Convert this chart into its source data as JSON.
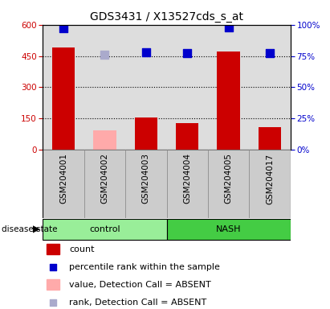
{
  "title": "GDS3431 / X13527cds_s_at",
  "samples": [
    "GSM204001",
    "GSM204002",
    "GSM204003",
    "GSM204004",
    "GSM204005",
    "GSM204017"
  ],
  "groups": [
    "control",
    "control",
    "control",
    "NASH",
    "NASH",
    "NASH"
  ],
  "count_values": [
    490,
    null,
    155,
    130,
    470,
    110
  ],
  "count_absent_values": [
    null,
    95,
    null,
    null,
    null,
    null
  ],
  "percentile_values": [
    97,
    null,
    78,
    77,
    98,
    77
  ],
  "percentile_absent_values": [
    null,
    76,
    null,
    null,
    null,
    null
  ],
  "left_yaxis": {
    "min": 0,
    "max": 600,
    "ticks": [
      0,
      150,
      300,
      450,
      600
    ],
    "color": "#cc0000"
  },
  "right_yaxis": {
    "min": 0,
    "max": 100,
    "ticks": [
      0,
      25,
      50,
      75,
      100
    ],
    "color": "#0000cc"
  },
  "bar_color": "#cc0000",
  "bar_absent_color": "#ffaaaa",
  "dot_color": "#0000cc",
  "dot_absent_color": "#aaaacc",
  "group_colors": {
    "control": "#99ee99",
    "NASH": "#44cc44"
  },
  "col_bg_color": "#cccccc",
  "background_color": "#ffffff",
  "plot_bg_color": "#dddddd",
  "bar_width": 0.55,
  "dot_size": 50,
  "legend_items": [
    {
      "label": "count",
      "color": "#cc0000",
      "type": "bar"
    },
    {
      "label": "percentile rank within the sample",
      "color": "#0000cc",
      "type": "dot"
    },
    {
      "label": "value, Detection Call = ABSENT",
      "color": "#ffaaaa",
      "type": "bar"
    },
    {
      "label": "rank, Detection Call = ABSENT",
      "color": "#aaaacc",
      "type": "dot"
    }
  ],
  "disease_state_label": "disease state",
  "title_fontsize": 10,
  "tick_fontsize": 7.5,
  "legend_fontsize": 8
}
